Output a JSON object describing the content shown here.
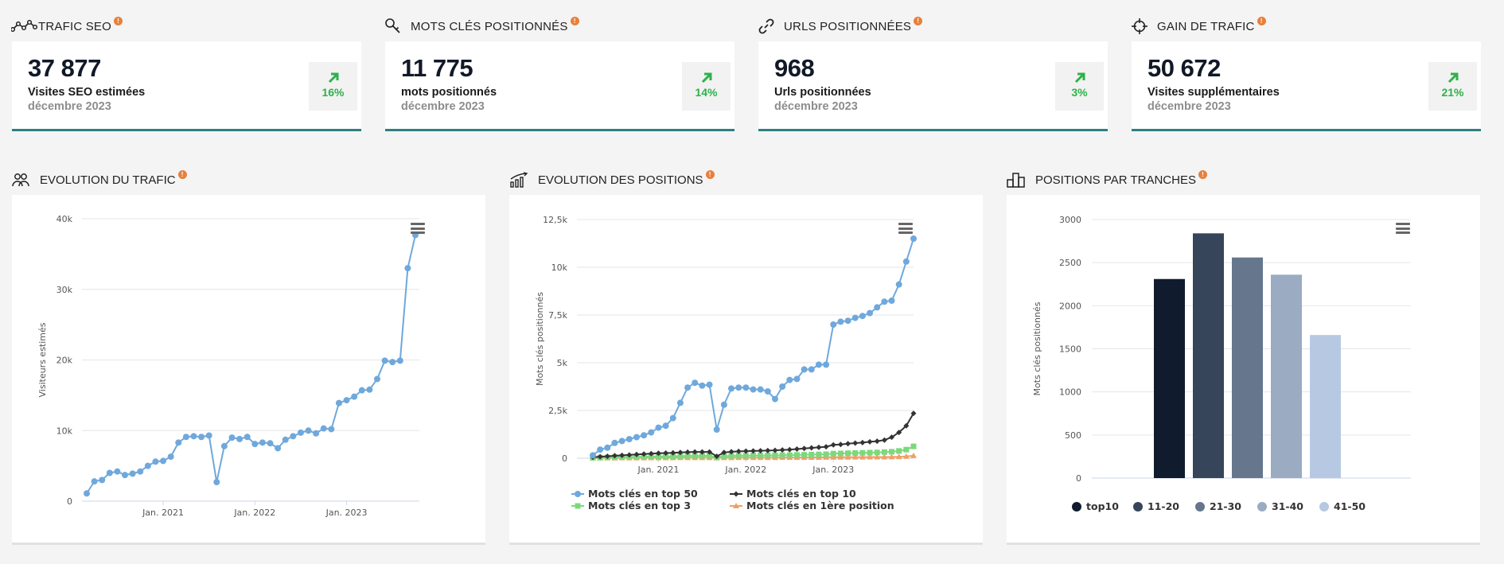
{
  "kpis": [
    {
      "title": "TRAFIC SEO",
      "icon": "traffic-line-icon",
      "value": "37 877",
      "label": "Visites SEO estimées",
      "date": "décembre 2023",
      "trend": "16%"
    },
    {
      "title": "MOTS CLÉS POSITIONNÉS",
      "icon": "key-icon",
      "value": "11 775",
      "label": "mots positionnés",
      "date": "décembre 2023",
      "trend": "14%"
    },
    {
      "title": "URLS POSITIONNÉES",
      "icon": "link-icon",
      "value": "968",
      "label": "Urls positionnées",
      "date": "décembre 2023",
      "trend": "3%"
    },
    {
      "title": "GAIN DE TRAFIC",
      "icon": "target-icon",
      "value": "50 672",
      "label": "Visites supplémentaires",
      "date": "décembre 2023",
      "trend": "21%"
    }
  ],
  "info_mark": "!",
  "colors": {
    "accent_border": "#2e7f82",
    "trend_green": "#2db24a",
    "info_orange": "#e8803a",
    "line_blue": "#6fa8dc"
  },
  "panels": {
    "traffic": {
      "title": "EVOLUTION DU TRAFIC",
      "icon": "users-icon"
    },
    "positions": {
      "title": "EVOLUTION DES POSITIONS",
      "icon": "growth-chart-icon"
    },
    "tranches": {
      "title": "POSITIONS PAR TRANCHES",
      "icon": "bar-chart-icon"
    }
  },
  "chart_data": [
    {
      "type": "line",
      "ylabel": "Visiteurs estimés",
      "ylim": [
        0,
        40000
      ],
      "y_ticks": [
        "0",
        "10k",
        "20k",
        "30k",
        "40k"
      ],
      "x_ticks": [
        "Jan. 2021",
        "Jan. 2022",
        "Jan. 2023"
      ],
      "series": [
        {
          "color": "#6fa8dc",
          "values": [
            1100,
            2800,
            3000,
            4000,
            4200,
            3700,
            3900,
            4200,
            5000,
            5600,
            5700,
            6300,
            8300,
            9100,
            9200,
            9100,
            9300,
            2700,
            7800,
            9000,
            8800,
            9100,
            8100,
            8300,
            8200,
            7500,
            8700,
            9200,
            9700,
            10000,
            9600,
            10300,
            10200,
            13900,
            14300,
            14800,
            15700,
            15800,
            17300,
            19900,
            19700,
            19900,
            33000,
            37700
          ]
        }
      ]
    },
    {
      "type": "line",
      "ylabel": "Mots clés positionnés",
      "ylim": [
        0,
        12500
      ],
      "y_ticks": [
        "0",
        "2,5k",
        "5k",
        "7,5k",
        "10k",
        "12,5k"
      ],
      "x_ticks": [
        "Jan. 2021",
        "Jan. 2022",
        "Jan. 2023"
      ],
      "legend": "bottom",
      "series": [
        {
          "name": "Mots clés en top 50",
          "color": "#6fa8dc",
          "marker": "circle",
          "values": [
            150,
            450,
            550,
            800,
            900,
            1000,
            1100,
            1200,
            1350,
            1600,
            1700,
            2100,
            2900,
            3700,
            3950,
            3800,
            3850,
            1500,
            2800,
            3650,
            3700,
            3700,
            3600,
            3600,
            3500,
            3100,
            3750,
            4100,
            4150,
            4650,
            4650,
            4900,
            4900,
            7000,
            7150,
            7200,
            7350,
            7450,
            7600,
            7900,
            8200,
            8250,
            9100,
            10300,
            11500
          ]
        },
        {
          "name": "Mots clés en top 10",
          "color": "#333333",
          "marker": "diamond",
          "values": [
            50,
            80,
            100,
            130,
            150,
            170,
            200,
            220,
            240,
            260,
            270,
            280,
            300,
            320,
            330,
            330,
            330,
            100,
            300,
            340,
            360,
            370,
            380,
            390,
            400,
            410,
            430,
            450,
            480,
            510,
            540,
            570,
            600,
            700,
            720,
            760,
            790,
            820,
            860,
            890,
            950,
            1100,
            1350,
            1700,
            2350
          ]
        },
        {
          "name": "Mots clés en top 3",
          "color": "#7dd87d",
          "marker": "square",
          "values": [
            20,
            30,
            40,
            50,
            55,
            60,
            70,
            80,
            90,
            95,
            100,
            105,
            110,
            120,
            125,
            125,
            125,
            40,
            110,
            125,
            130,
            135,
            140,
            140,
            145,
            150,
            155,
            160,
            170,
            180,
            190,
            200,
            210,
            240,
            250,
            260,
            270,
            280,
            290,
            300,
            320,
            340,
            380,
            450,
            620
          ]
        },
        {
          "name": "Mots clés en 1ère position",
          "color": "#f0a066",
          "marker": "triangle",
          "values": [
            5,
            8,
            10,
            12,
            14,
            15,
            16,
            18,
            20,
            21,
            22,
            23,
            25,
            27,
            28,
            28,
            28,
            10,
            25,
            28,
            29,
            30,
            30,
            31,
            32,
            33,
            34,
            35,
            37,
            39,
            41,
            43,
            45,
            50,
            52,
            54,
            56,
            58,
            60,
            62,
            65,
            70,
            80,
            95,
            130
          ]
        }
      ]
    },
    {
      "type": "bar",
      "ylabel": "Mots clés positionnés",
      "ylim": [
        0,
        3000
      ],
      "y_ticks": [
        "0",
        "500",
        "1000",
        "1500",
        "2000",
        "2500",
        "3000"
      ],
      "legend": "bottom",
      "categories": [
        "top10",
        "11-20",
        "21-30",
        "31-40",
        "41-50"
      ],
      "colors": [
        "#101b2d",
        "#364559",
        "#66768c",
        "#9aabc2",
        "#b7c9e2"
      ],
      "values": [
        2310,
        2840,
        2560,
        2360,
        1660
      ]
    }
  ]
}
